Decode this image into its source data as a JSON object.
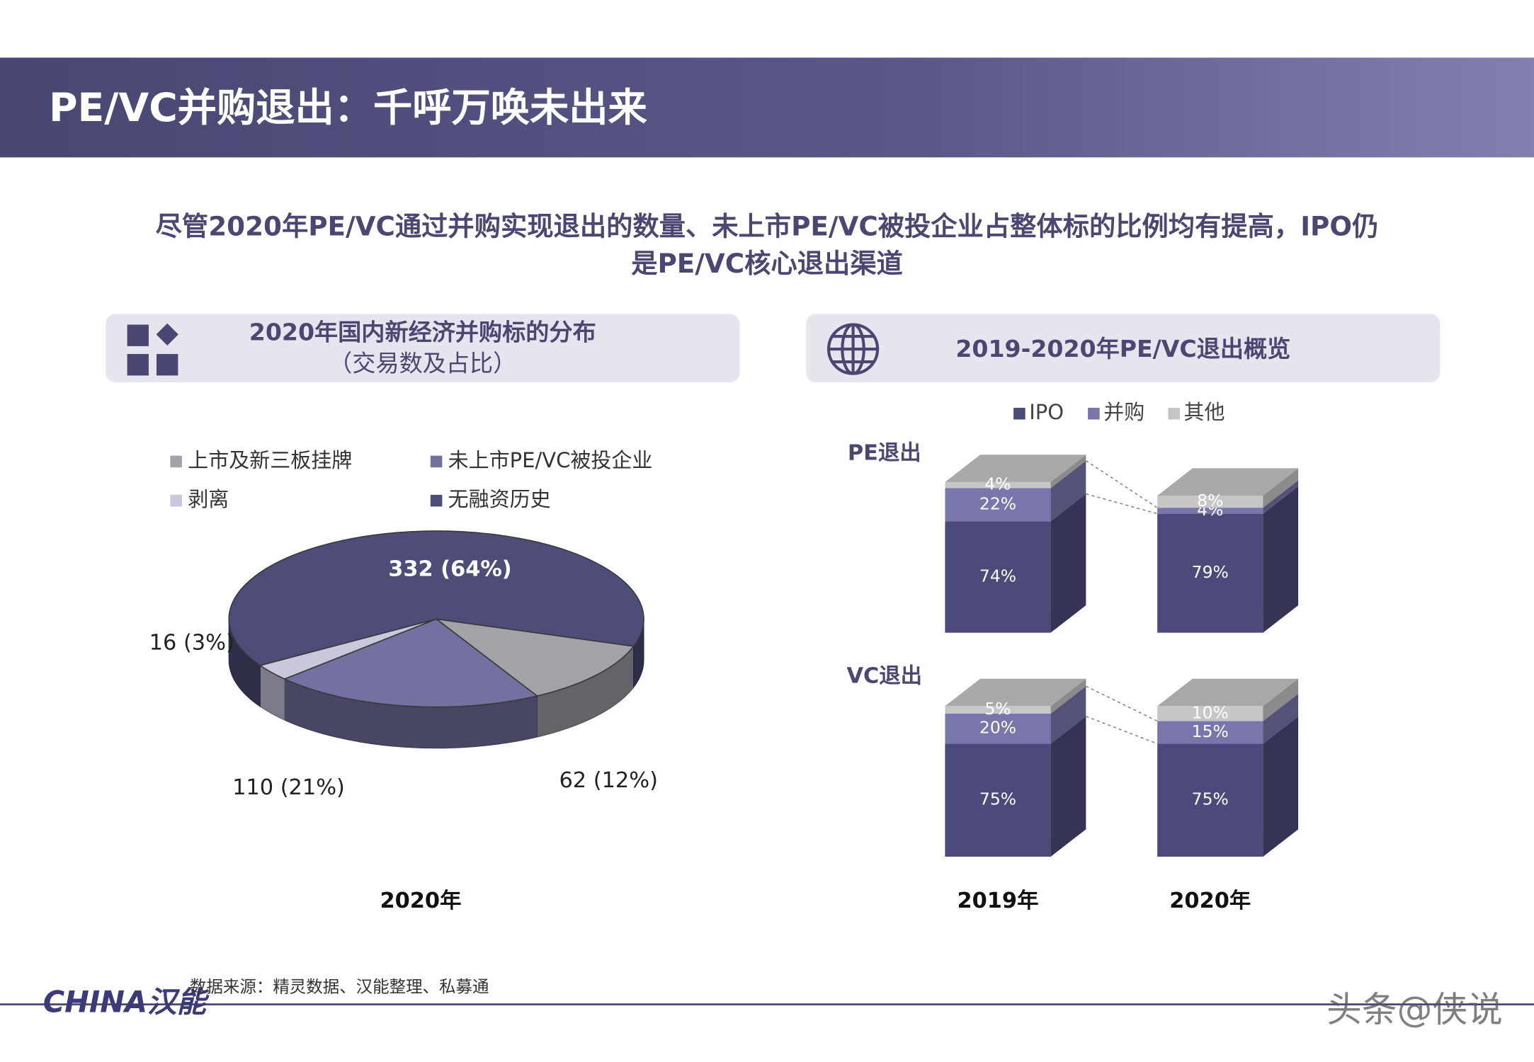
{
  "header": {
    "title": "PE/VC并购退出：千呼万唤未出来"
  },
  "subtitle": [
    "尽管2020年PE/VC通过并购实现退出的数量、未上市PE/VC被投企业占整体标的比例均有提高，IPO仍",
    "是PE/VC核心退出渠道"
  ],
  "footer": {
    "logo": "CHINA汉能",
    "source": "数据来源：精灵数据、汉能整理、私募通",
    "watermark": "头条@侠说"
  },
  "chart_data": [
    {
      "type": "pie",
      "title": [
        "2020年国内新经济并购标的分布",
        "（交易数及占比）"
      ],
      "x_label": "2020年",
      "categories": [
        "上市及新三板挂牌",
        "未上市PE/VC被投企业",
        "剥离",
        "无融资历史"
      ],
      "values": [
        62,
        110,
        16,
        332
      ],
      "value_labels": [
        "62 (12%)",
        "110 (21%)",
        "16 (3%)",
        "332 (64%)"
      ],
      "colors": [
        "#a2a2a8",
        "#73719f",
        "#c9c7dc",
        "#4e4c78"
      ]
    },
    {
      "type": "stacked-bar-3d",
      "title": "2019-2020年PE/VC退出概览",
      "categories": [
        "2019年",
        "2020年"
      ],
      "ylim": [
        0,
        100
      ],
      "series": [
        {
          "name": "IPO",
          "color": "#4c4a7a"
        },
        {
          "name": "并购",
          "color": "#7876aa"
        },
        {
          "name": "其他",
          "color": "#c6c6c8"
        }
      ],
      "panels": [
        {
          "name": "PE退出",
          "values": [
            [
              74,
              79
            ],
            [
              22,
              4
            ],
            [
              4,
              8
            ]
          ],
          "value_labels": [
            [
              "74%",
              "79%"
            ],
            [
              "22%",
              "4%"
            ],
            [
              "4%",
              "8%"
            ]
          ]
        },
        {
          "name": "VC退出",
          "values": [
            [
              75,
              75
            ],
            [
              20,
              15
            ],
            [
              5,
              10
            ]
          ],
          "value_labels": [
            [
              "75%",
              "75%"
            ],
            [
              "20%",
              "15%"
            ],
            [
              "5%",
              "10%"
            ]
          ]
        }
      ]
    }
  ]
}
